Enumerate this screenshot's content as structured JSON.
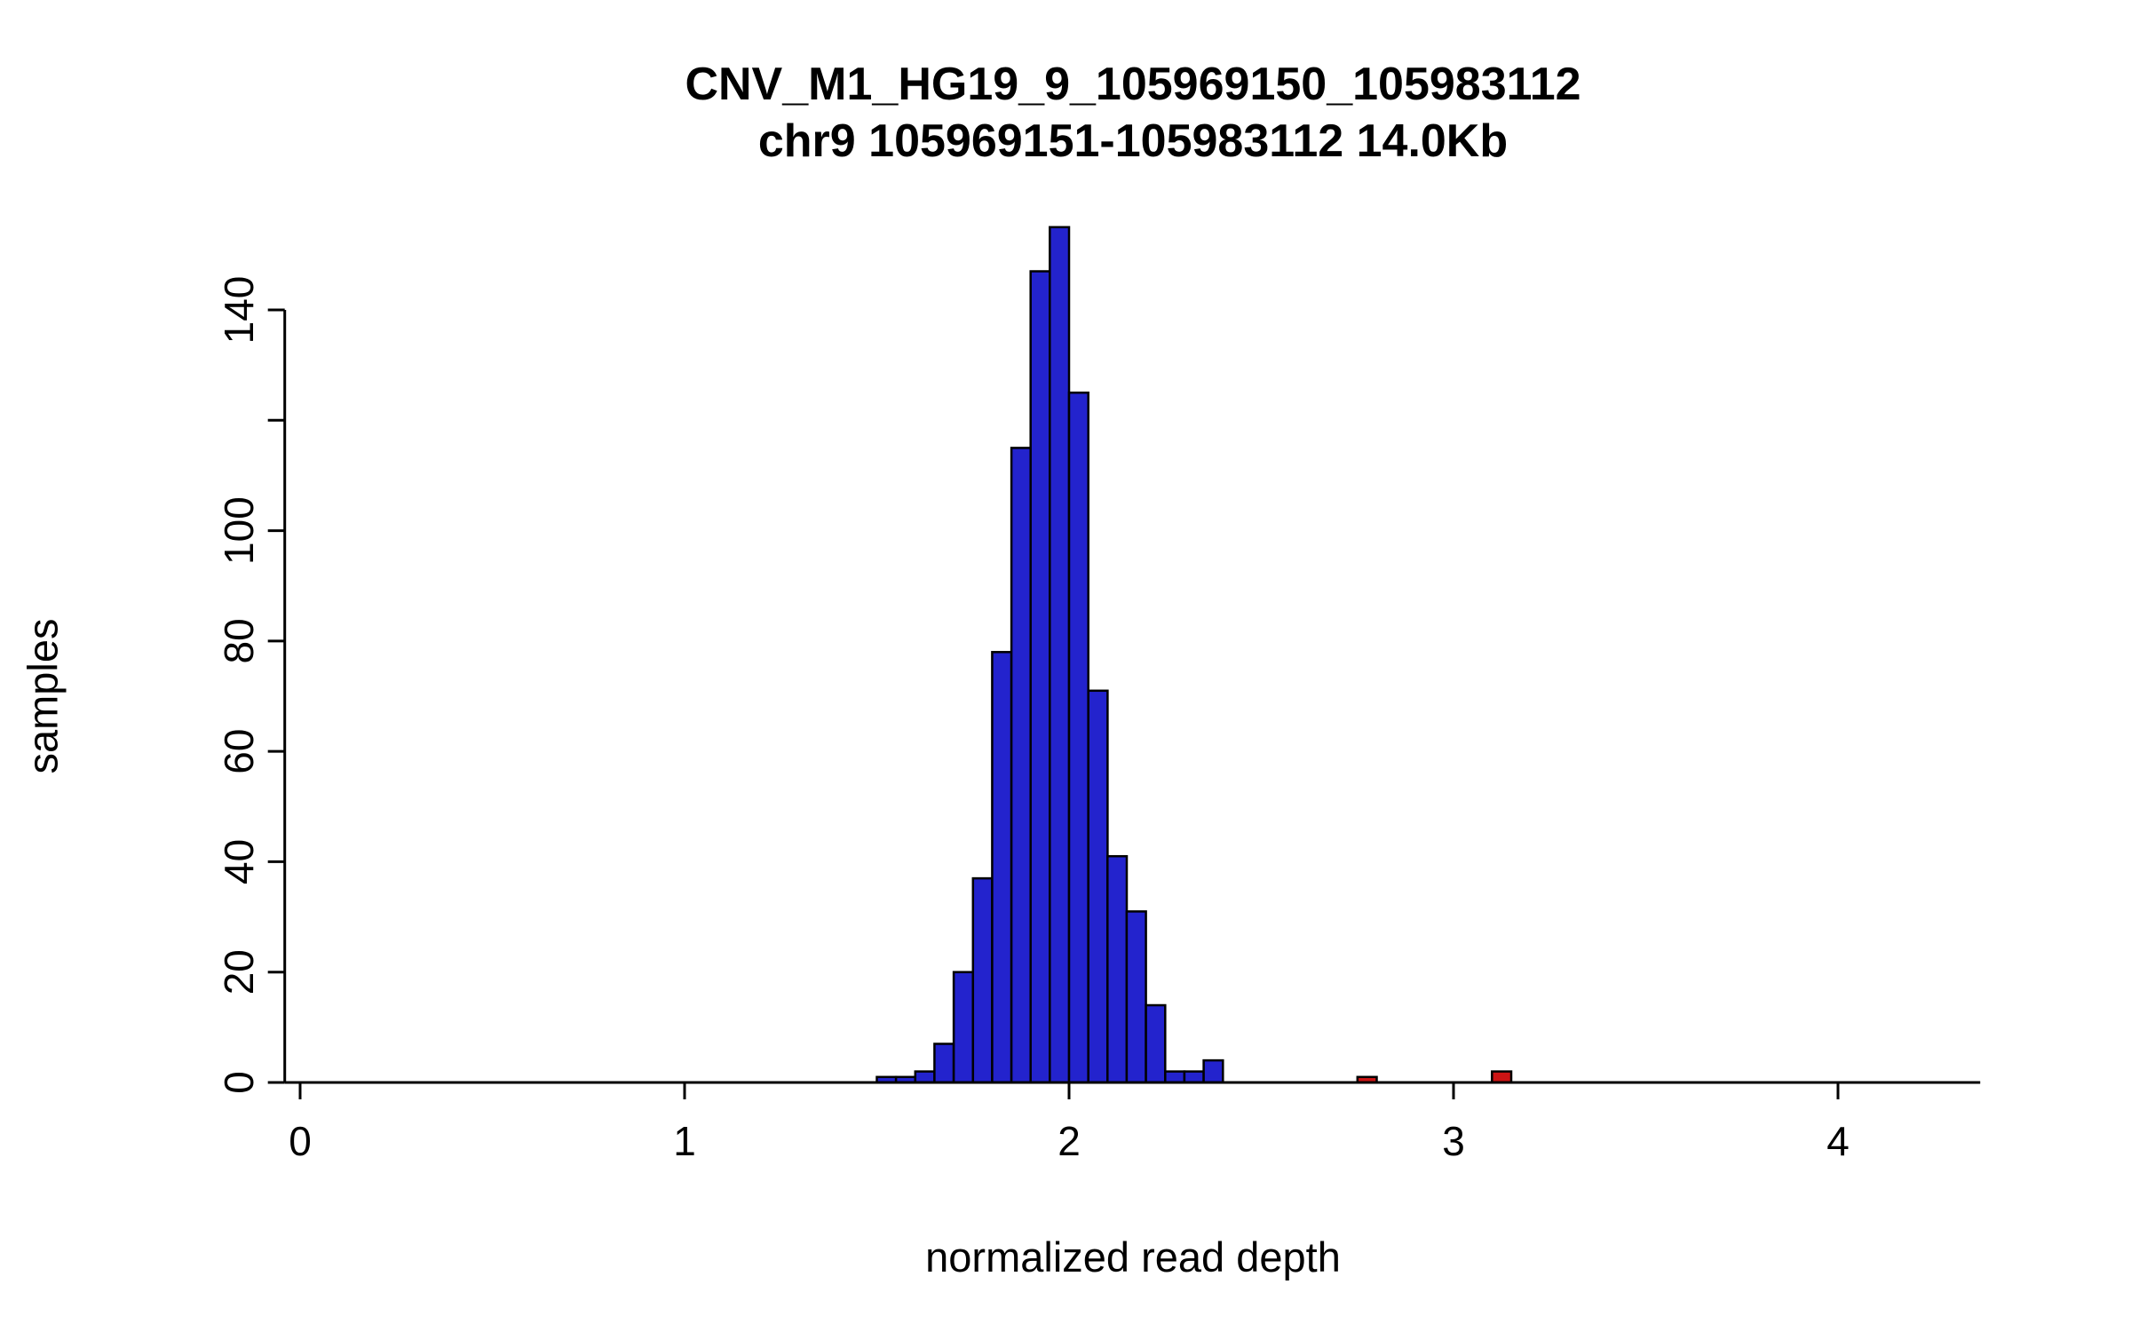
{
  "page": {
    "background": "#ffffff"
  },
  "chart_data": {
    "type": "bar",
    "subtype": "histogram",
    "title": "CNV_M1_HG19_9_105969150_105983112",
    "subtitle": "chr9 105969151-105983112 14.0Kb",
    "xlabel": "normalized read depth",
    "ylabel": "samples",
    "xlim": [
      -0.04,
      4.37
    ],
    "ylim": [
      0,
      157
    ],
    "grid": "off",
    "legend": "none",
    "bin_width": 0.05,
    "x_ticks": [
      {
        "value": 0,
        "label": "0"
      },
      {
        "value": 1,
        "label": "1"
      },
      {
        "value": 2,
        "label": "2"
      },
      {
        "value": 3,
        "label": "3"
      },
      {
        "value": 4,
        "label": "4"
      }
    ],
    "y_ticks": [
      {
        "value": 0,
        "label": "0"
      },
      {
        "value": 20,
        "label": "20"
      },
      {
        "value": 40,
        "label": "40"
      },
      {
        "value": 60,
        "label": "60"
      },
      {
        "value": 80,
        "label": "80"
      },
      {
        "value": 100,
        "label": "100"
      },
      {
        "value": 120,
        "label": ""
      },
      {
        "value": 140,
        "label": "140"
      }
    ],
    "bins": [
      {
        "start": 1.5,
        "count": 1,
        "color": "blue"
      },
      {
        "start": 1.55,
        "count": 1,
        "color": "blue"
      },
      {
        "start": 1.6,
        "count": 2,
        "color": "blue"
      },
      {
        "start": 1.65,
        "count": 7,
        "color": "blue"
      },
      {
        "start": 1.7,
        "count": 20,
        "color": "blue"
      },
      {
        "start": 1.75,
        "count": 37,
        "color": "blue"
      },
      {
        "start": 1.8,
        "count": 78,
        "color": "blue"
      },
      {
        "start": 1.85,
        "count": 115,
        "color": "blue"
      },
      {
        "start": 1.9,
        "count": 147,
        "color": "blue"
      },
      {
        "start": 1.95,
        "count": 155,
        "color": "blue"
      },
      {
        "start": 2.0,
        "count": 125,
        "color": "blue"
      },
      {
        "start": 2.05,
        "count": 71,
        "color": "blue"
      },
      {
        "start": 2.1,
        "count": 41,
        "color": "blue"
      },
      {
        "start": 2.15,
        "count": 31,
        "color": "blue"
      },
      {
        "start": 2.2,
        "count": 14,
        "color": "blue"
      },
      {
        "start": 2.25,
        "count": 2,
        "color": "blue"
      },
      {
        "start": 2.3,
        "count": 2,
        "color": "blue"
      },
      {
        "start": 2.35,
        "count": 4,
        "color": "blue"
      },
      {
        "start": 2.75,
        "count": 1,
        "color": "red"
      },
      {
        "start": 3.1,
        "count": 2,
        "color": "red"
      }
    ],
    "colors": {
      "blue": "#2323cd",
      "red": "#cc1414",
      "stroke": "#000000"
    }
  }
}
